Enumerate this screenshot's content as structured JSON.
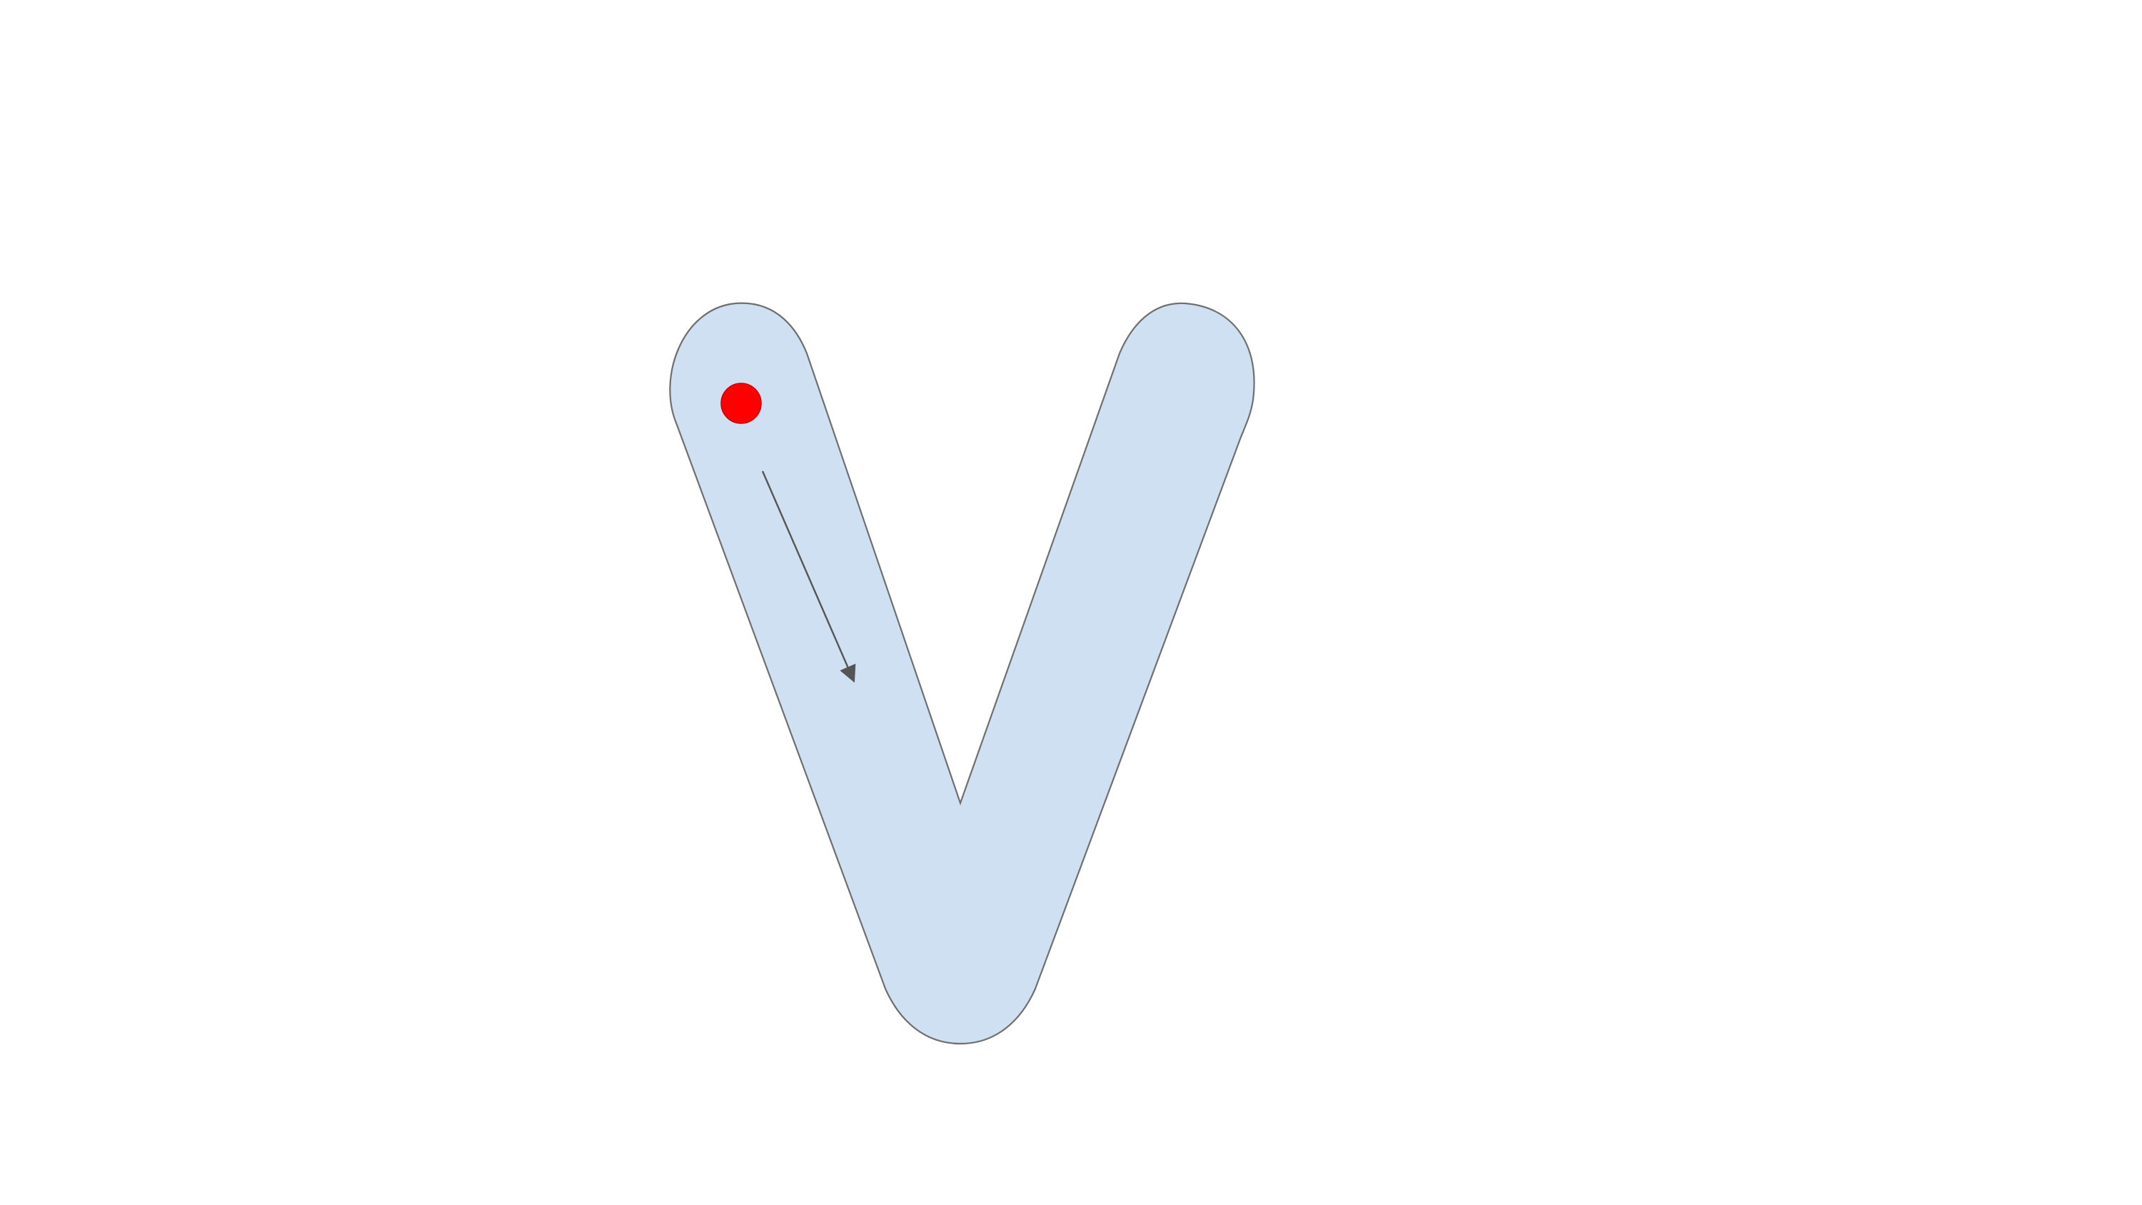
{
  "diagram": {
    "shape": "letter-v-tracing-guide",
    "letter_fill_color": "#cfe0f3",
    "letter_stroke_color": "#6f6f6f",
    "start_dot_color": "#ff0000",
    "start_dot_stroke_color": "#cc0000",
    "arrow_color": "#555555"
  }
}
